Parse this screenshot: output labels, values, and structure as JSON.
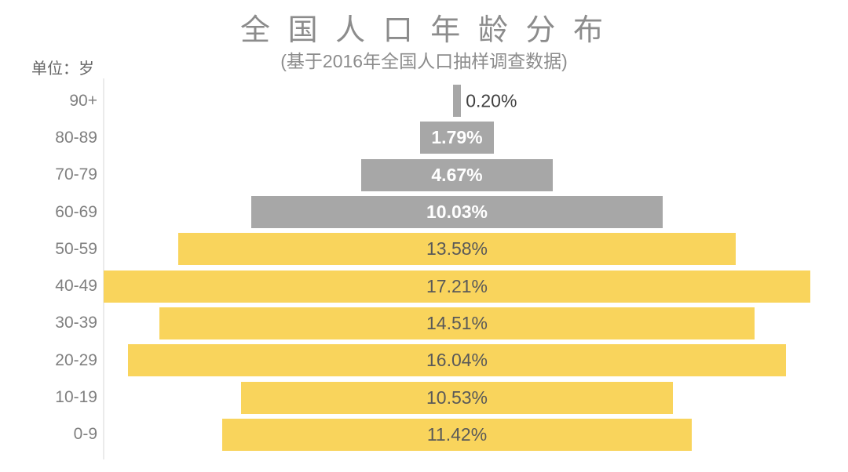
{
  "header": {
    "title_display": "全 国 人 口 年 龄 分 布",
    "subtitle": "(基于2016年全国人口抽样调查数据)",
    "unit_label": "单位：岁"
  },
  "chart_data": {
    "type": "bar",
    "variant": "horizontal-centered-pyramid",
    "title": "全国人口年龄分布",
    "subtitle": "(基于2016年全国人口抽样调查数据)",
    "unit": "岁",
    "categories": [
      "90+",
      "80-89",
      "70-79",
      "60-69",
      "50-59",
      "40-49",
      "30-39",
      "20-29",
      "10-19",
      "0-9"
    ],
    "values": [
      0.2,
      1.79,
      4.67,
      10.03,
      13.58,
      17.21,
      14.51,
      16.04,
      10.53,
      11.42
    ],
    "value_labels": [
      "0.20%",
      "1.79%",
      "4.67%",
      "10.03%",
      "13.58%",
      "17.21%",
      "14.51%",
      "16.04%",
      "10.53%",
      "11.42%"
    ],
    "bar_colors": [
      "#A7A7A7",
      "#A7A7A7",
      "#A7A7A7",
      "#A7A7A7",
      "#F9D45C",
      "#F9D45C",
      "#F9D45C",
      "#F9D45C",
      "#F9D45C",
      "#F9D45C"
    ],
    "label_styles": [
      "outside",
      "inside-white",
      "inside-white",
      "inside-white",
      "inside-dark",
      "inside-dark",
      "inside-dark",
      "inside-dark",
      "inside-dark",
      "inside-dark"
    ],
    "colors": {
      "elderly_gray": "#A7A7A7",
      "younger_yellow": "#F9D45C",
      "title_gray": "#8c8c8c",
      "axis_line": "#ebebeb",
      "inside_white_text": "#ffffff",
      "inside_dark_text": "#595959",
      "outside_text": "#404040",
      "age_label_text": "#7f7f7f"
    },
    "legend": "none",
    "grid": "off",
    "xlim_max_percent": 17.21
  }
}
